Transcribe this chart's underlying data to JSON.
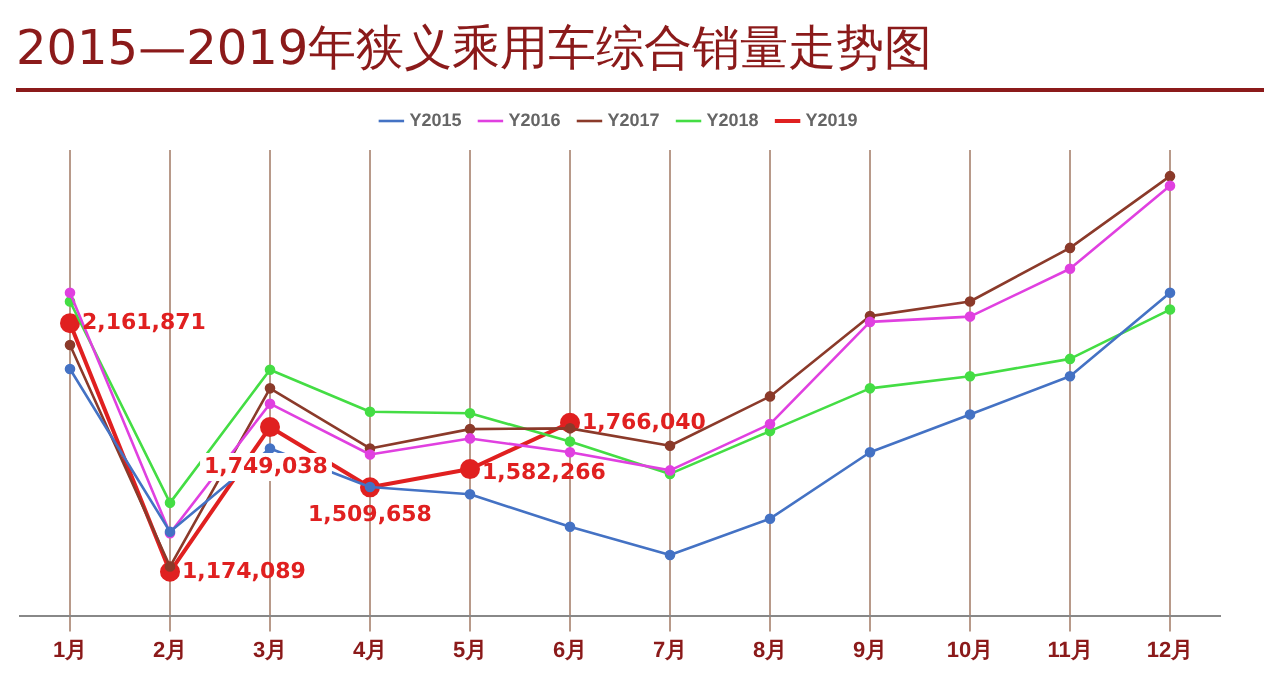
{
  "chart_data": {
    "type": "line",
    "title": "2015—2019年狭义乘用车综合销量走势图",
    "categories": [
      "1月",
      "2月",
      "3月",
      "4月",
      "5月",
      "6月",
      "7月",
      "8月",
      "9月",
      "10月",
      "11月",
      "12月"
    ],
    "series": [
      {
        "name": "Y2015",
        "color": "#4472c4",
        "values": [
          1980000,
          1333000,
          1664000,
          1511000,
          1482000,
          1353000,
          1241000,
          1385000,
          1649000,
          1799000,
          1951000,
          2283000
        ]
      },
      {
        "name": "Y2016",
        "color": "#e040e0",
        "values": [
          2283000,
          1327000,
          1842000,
          1640000,
          1704000,
          1649000,
          1577000,
          1761000,
          2167000,
          2188000,
          2378000,
          2708000
        ]
      },
      {
        "name": "Y2017",
        "color": "#8b3a2a",
        "values": [
          2075000,
          1195000,
          1903000,
          1664000,
          1741000,
          1744000,
          1675000,
          1871000,
          2190000,
          2248000,
          2461000,
          2746000
        ]
      },
      {
        "name": "Y2018",
        "color": "#44dd44",
        "values": [
          2248000,
          1448000,
          1977000,
          1810000,
          1804000,
          1692000,
          1563000,
          1733000,
          1903000,
          1951000,
          2020000,
          2216000
        ]
      },
      {
        "name": "Y2019",
        "color": "#e02020",
        "values": [
          2161871,
          1174089,
          1749038,
          1509658,
          1582266,
          1766040,
          null,
          null,
          null,
          null,
          null,
          null
        ],
        "value_labels": [
          "2,161,871",
          "1,174,089",
          "1,749,038",
          "1,509,658",
          "1,582,266",
          "1,766,040",
          null,
          null,
          null,
          null,
          null,
          null
        ]
      }
    ],
    "ylim": [
      1000000,
      2850000
    ],
    "tick_labels": "x",
    "grid": "x",
    "legend": "top",
    "marker": "circle"
  }
}
